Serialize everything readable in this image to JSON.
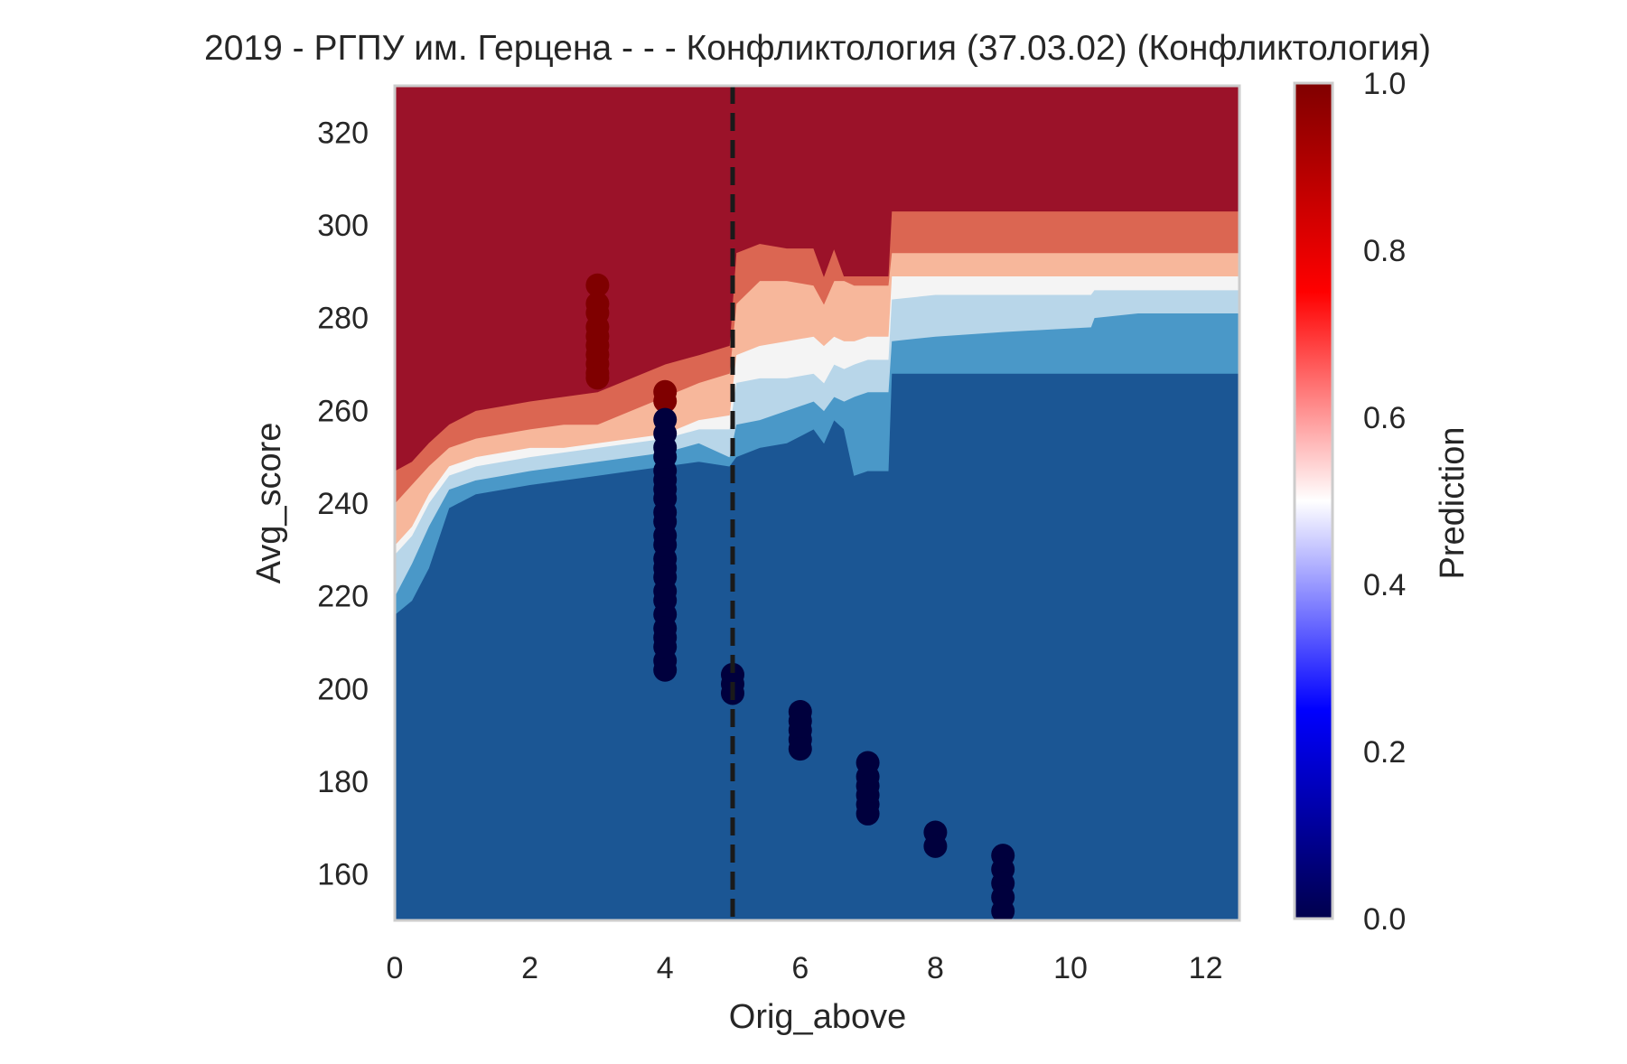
{
  "chart_data": {
    "type": "heatmap",
    "title": "2019 - РГПУ им. Герцена - - - Конфликтология (37.03.02) (Конфликтология)",
    "xlabel": "Orig_above",
    "ylabel": "Avg_score",
    "xlim": [
      0,
      12.5
    ],
    "ylim": [
      150,
      330
    ],
    "x_ticks": [
      0,
      2,
      4,
      6,
      8,
      10,
      12
    ],
    "y_ticks": [
      160,
      180,
      200,
      220,
      240,
      260,
      280,
      300,
      320
    ],
    "grid": false,
    "colorbar": {
      "label": "Prediction",
      "range": [
        0.0,
        1.0
      ],
      "ticks": [
        "0.0",
        "0.2",
        "0.4",
        "0.6",
        "0.8",
        "1.0"
      ],
      "colormap": "seismic"
    },
    "contour_levels": [
      {
        "level_range": "0.0-0.143",
        "color": "#1b5694"
      },
      {
        "level_range": "0.143-0.286",
        "color": "#4a98c8"
      },
      {
        "level_range": "0.286-0.429",
        "color": "#b8d6e9"
      },
      {
        "level_range": "0.429-0.571",
        "color": "#f4f4f4"
      },
      {
        "level_range": "0.571-0.714",
        "color": "#f7b79b"
      },
      {
        "level_range": "0.714-0.857",
        "color": "#db6652"
      },
      {
        "level_range": "0.857-1.0",
        "color": "#9b1229"
      }
    ],
    "boundaries": {
      "x": [
        0,
        0.25,
        0.5,
        0.8,
        1.2,
        1.6,
        2.0,
        2.5,
        3.0,
        3.5,
        4.0,
        4.5,
        4.95,
        5.05,
        5.4,
        5.8,
        6.2,
        6.35,
        6.5,
        6.65,
        6.8,
        7.0,
        7.3,
        7.35,
        8.0,
        9.0,
        10.3,
        10.35,
        11.0,
        12.5
      ],
      "b1": [
        216,
        219,
        226,
        239,
        242,
        243,
        244,
        245,
        246,
        247,
        248,
        249,
        248,
        250,
        252,
        253,
        256,
        253,
        258,
        256,
        246,
        247,
        247,
        268,
        268,
        268,
        268,
        268,
        268,
        268
      ],
      "b2": [
        220,
        227,
        235,
        243,
        245,
        246,
        247,
        248,
        249,
        250,
        251,
        253,
        250,
        257,
        258,
        260,
        262,
        260,
        263,
        262,
        263,
        264,
        264,
        275,
        276,
        277,
        278,
        280,
        281,
        281
      ],
      "b3": [
        229,
        233,
        240,
        246,
        248,
        249,
        250,
        251,
        252,
        253,
        254,
        256,
        256,
        266,
        267,
        267,
        268,
        266,
        270,
        269,
        270,
        271,
        271,
        284,
        285,
        285,
        285,
        286,
        286,
        286
      ],
      "b4": [
        231,
        235,
        242,
        248,
        250,
        251,
        252,
        252,
        253,
        254,
        255,
        258,
        259,
        272,
        274,
        275,
        276,
        274,
        276,
        275,
        275,
        276,
        276,
        289,
        289,
        289,
        289,
        289,
        289,
        289
      ],
      "b5": [
        240,
        244,
        248,
        252,
        254,
        255,
        256,
        257,
        257,
        260,
        263,
        266,
        268,
        283,
        288,
        288,
        287,
        283,
        288,
        288,
        287,
        287,
        287,
        294,
        294,
        294,
        294,
        294,
        294,
        294
      ],
      "b6": [
        247,
        249,
        253,
        257,
        260,
        261,
        262,
        263,
        264,
        267,
        270,
        272,
        274,
        294,
        296,
        295,
        295,
        289,
        295,
        289,
        289,
        289,
        289,
        303,
        303,
        303,
        303,
        303,
        303,
        303
      ]
    },
    "threshold_line": {
      "x": 5,
      "style": "dashed",
      "color": "#1a1a1a"
    },
    "scatter_series": [
      {
        "x": 3,
        "y_values": [
          287,
          283,
          281,
          278,
          276,
          274,
          272,
          270,
          268,
          267
        ],
        "prediction": 1.0,
        "color": "#7f0000"
      },
      {
        "x": 4,
        "y_values": [
          264,
          262
        ],
        "prediction": 1.0,
        "color": "#7f0000"
      },
      {
        "x": 4,
        "y_values": [
          258,
          255,
          252,
          250,
          247,
          245,
          243,
          241,
          238,
          236,
          233,
          231,
          228,
          226,
          224,
          221,
          219,
          216,
          213,
          211,
          209,
          206,
          204
        ],
        "prediction": 0.0,
        "color": "#00003d"
      },
      {
        "x": 5,
        "y_values": [
          203,
          201,
          199
        ],
        "prediction": 0.0,
        "color": "#00003d"
      },
      {
        "x": 6,
        "y_values": [
          195,
          193,
          191,
          189,
          187
        ],
        "prediction": 0.0,
        "color": "#00003d"
      },
      {
        "x": 7,
        "y_values": [
          184,
          181,
          179,
          177,
          175,
          173
        ],
        "prediction": 0.0,
        "color": "#00003d"
      },
      {
        "x": 8,
        "y_values": [
          169,
          166
        ],
        "prediction": 0.0,
        "color": "#00003d"
      },
      {
        "x": 9,
        "y_values": [
          164,
          161,
          158,
          155,
          152
        ],
        "prediction": 0.0,
        "color": "#00003d"
      }
    ]
  }
}
